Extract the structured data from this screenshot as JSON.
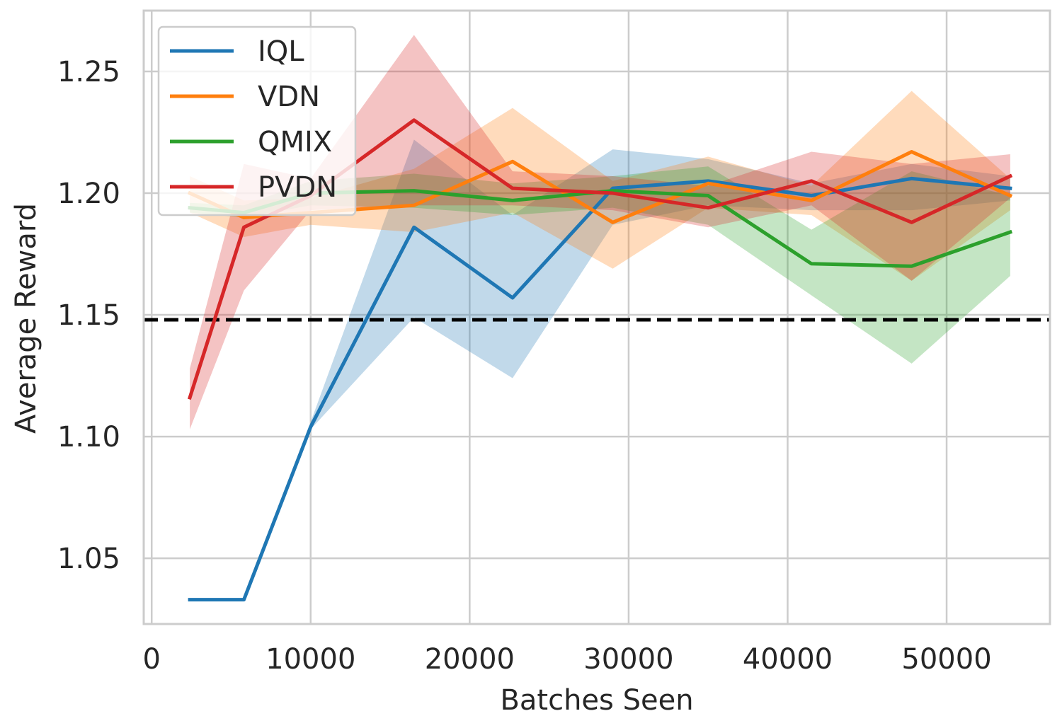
{
  "chart_data": {
    "type": "line",
    "title": "",
    "xlabel": "Batches Seen",
    "ylabel": "Average Reward",
    "xlim": [
      -500,
      56500
    ],
    "ylim": [
      1.023,
      1.275
    ],
    "xticks": [
      0,
      10000,
      20000,
      30000,
      40000,
      50000
    ],
    "xtick_labels": [
      "0",
      "10000",
      "20000",
      "30000",
      "40000",
      "50000"
    ],
    "yticks": [
      1.05,
      1.1,
      1.15,
      1.2,
      1.25
    ],
    "ytick_labels": [
      "1.05",
      "1.10",
      "1.15",
      "1.20",
      "1.25"
    ],
    "grid": true,
    "legend_position": "top-left",
    "baseline": {
      "value": 1.148,
      "style": "dashed",
      "color": "#000000"
    },
    "x": [
      2400,
      5800,
      10000,
      16500,
      22700,
      29000,
      35000,
      41500,
      47800,
      54000
    ],
    "series": [
      {
        "name": "IQL",
        "color": "#1f77b4",
        "values": [
          1.033,
          1.033,
          1.104,
          1.186,
          1.157,
          1.202,
          1.205,
          1.199,
          1.206,
          1.202
        ],
        "lower": [
          1.033,
          1.033,
          1.103,
          1.149,
          1.124,
          1.187,
          1.195,
          1.193,
          1.193,
          1.197
        ],
        "upper": [
          1.033,
          1.033,
          1.106,
          1.222,
          1.191,
          1.218,
          1.214,
          1.204,
          1.212,
          1.207
        ]
      },
      {
        "name": "VDN",
        "color": "#ff7f0e",
        "values": [
          1.2,
          1.19,
          1.192,
          1.195,
          1.213,
          1.188,
          1.204,
          1.197,
          1.217,
          1.199
        ],
        "lower": [
          1.192,
          1.182,
          1.187,
          1.184,
          1.192,
          1.169,
          1.194,
          1.191,
          1.164,
          1.193
        ],
        "upper": [
          1.207,
          1.197,
          1.198,
          1.21,
          1.235,
          1.205,
          1.215,
          1.203,
          1.242,
          1.206
        ]
      },
      {
        "name": "QMIX",
        "color": "#2ca02c",
        "values": [
          1.194,
          1.192,
          1.2,
          1.201,
          1.197,
          1.201,
          1.199,
          1.171,
          1.17,
          1.184
        ],
        "lower": [
          1.192,
          1.19,
          1.195,
          1.194,
          1.191,
          1.194,
          1.187,
          1.158,
          1.13,
          1.166
        ],
        "upper": [
          1.196,
          1.195,
          1.205,
          1.208,
          1.204,
          1.207,
          1.211,
          1.185,
          1.209,
          1.199
        ]
      },
      {
        "name": "PVDN",
        "color": "#d62728",
        "values": [
          1.116,
          1.186,
          1.199,
          1.23,
          1.202,
          1.2,
          1.194,
          1.205,
          1.188,
          1.207
        ],
        "lower": [
          1.103,
          1.16,
          1.193,
          1.195,
          1.195,
          1.193,
          1.186,
          1.195,
          1.164,
          1.198
        ],
        "upper": [
          1.128,
          1.212,
          1.206,
          1.265,
          1.209,
          1.207,
          1.203,
          1.217,
          1.212,
          1.216
        ]
      }
    ]
  }
}
